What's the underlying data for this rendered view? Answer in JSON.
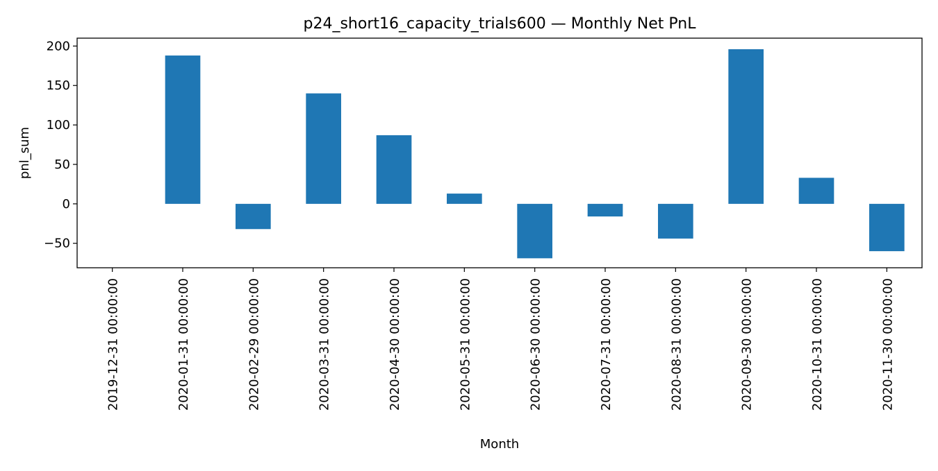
{
  "chart_data": {
    "type": "bar",
    "title": "p24_short16_capacity_trials600 — Monthly Net PnL",
    "xlabel": "Month",
    "ylabel": "pnl_sum",
    "categories": [
      "2019-12-31 00:00:00",
      "2020-01-31 00:00:00",
      "2020-02-29 00:00:00",
      "2020-03-31 00:00:00",
      "2020-04-30 00:00:00",
      "2020-05-31 00:00:00",
      "2020-06-30 00:00:00",
      "2020-07-31 00:00:00",
      "2020-08-31 00:00:00",
      "2020-09-30 00:00:00",
      "2020-10-31 00:00:00",
      "2020-11-30 00:00:00"
    ],
    "values": [
      0,
      188,
      -32,
      140,
      87,
      13,
      -69,
      -16,
      -44,
      196,
      33,
      -60
    ],
    "ylim": [
      -81,
      210
    ],
    "yticks": [
      -50,
      0,
      50,
      100,
      150,
      200
    ],
    "ytick_labels": [
      "−50",
      "0",
      "50",
      "100",
      "150",
      "200"
    ],
    "bar_color": "#1f77b4",
    "grid": false,
    "legend": "none"
  }
}
